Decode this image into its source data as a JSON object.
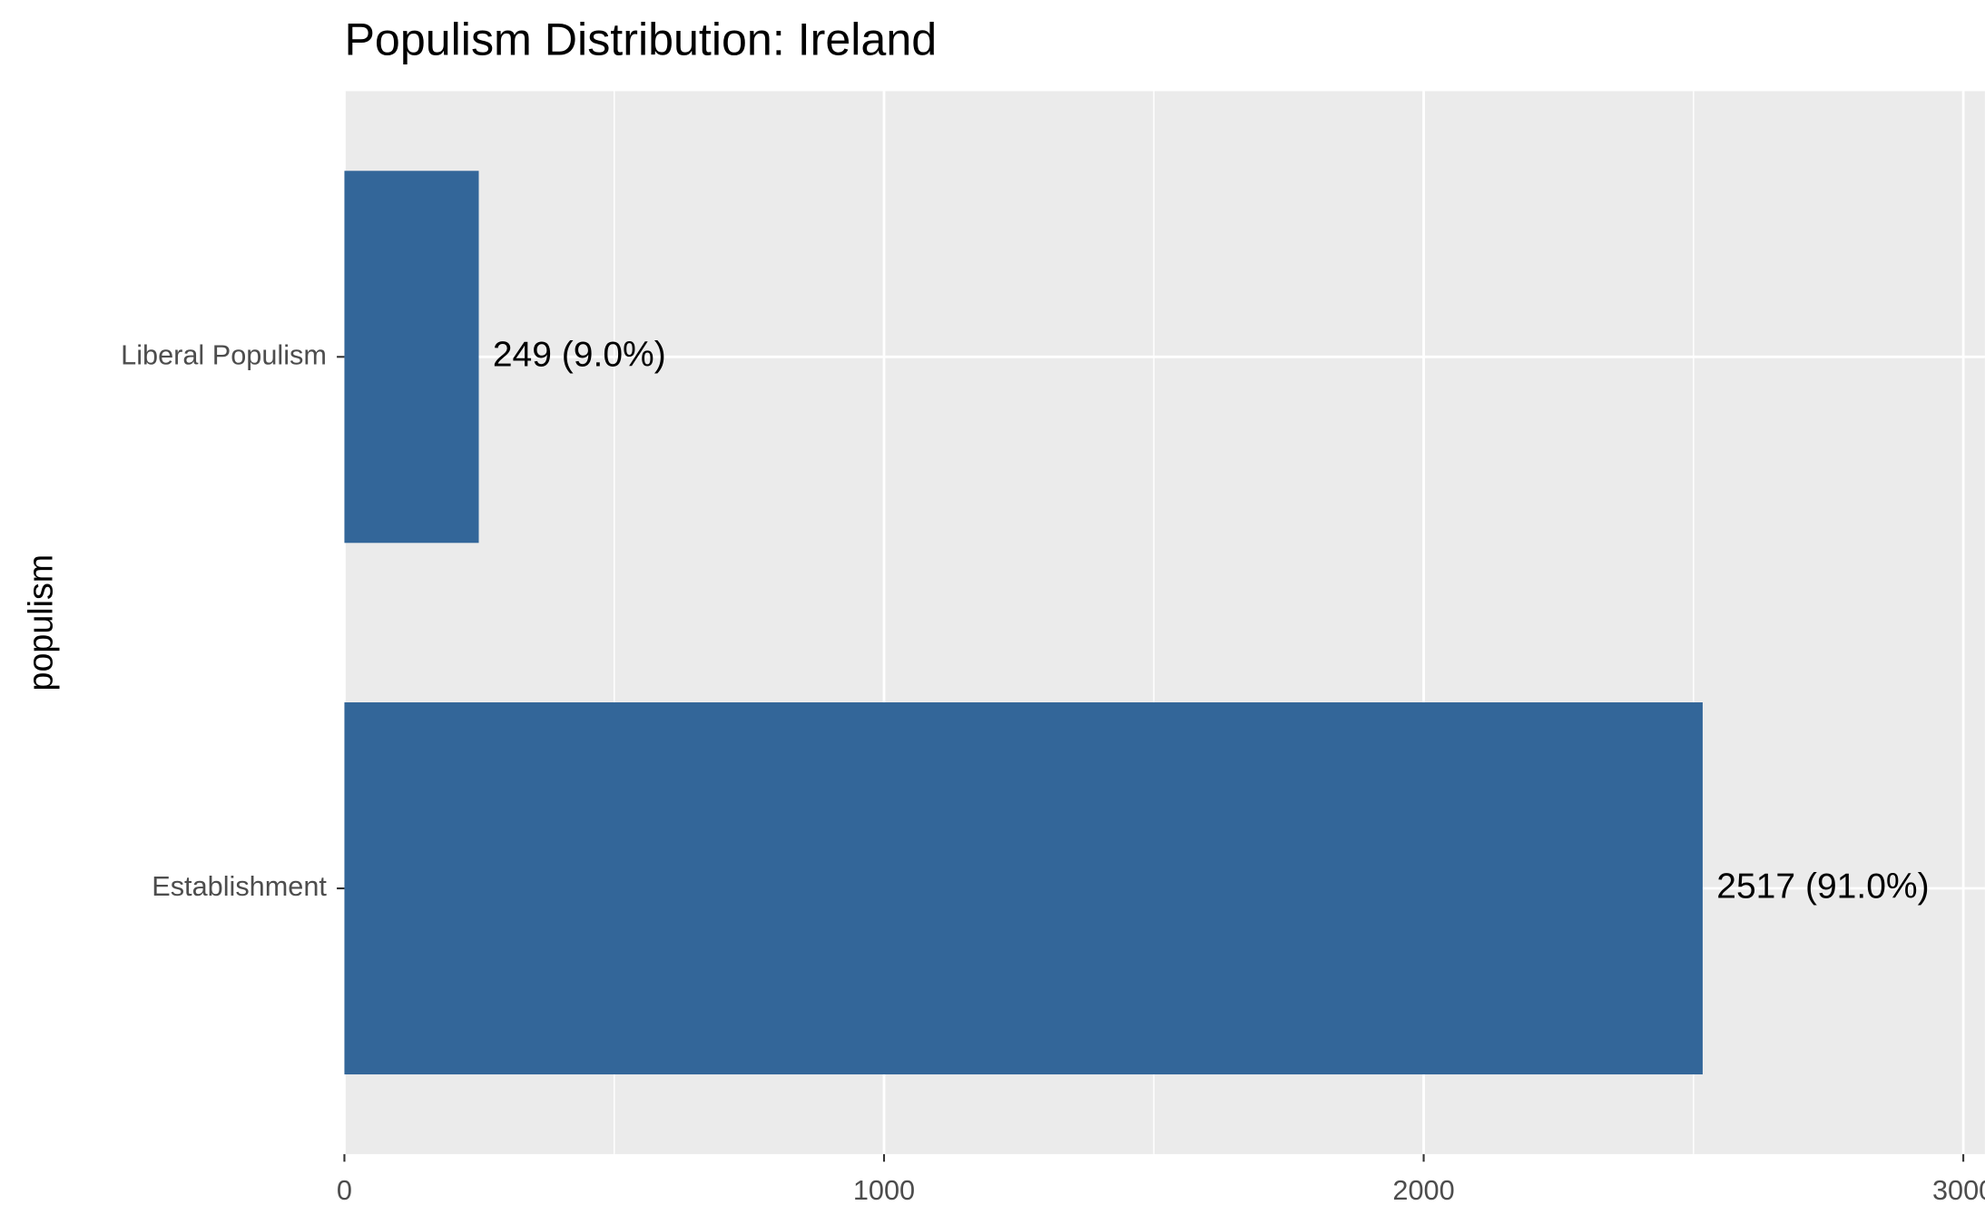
{
  "chart_data": {
    "type": "bar",
    "orientation": "horizontal",
    "title": "Populism Distribution: Ireland",
    "y_label": "populism",
    "categories": [
      "Liberal Populism",
      "Establishment"
    ],
    "values": [
      249,
      2517
    ],
    "value_labels": [
      "249 (9.0%)",
      "2517 (91.0%)"
    ],
    "color": "#336699",
    "xlim": [
      0,
      3040
    ],
    "xticks": [
      0,
      1000,
      2000,
      3000
    ],
    "minor_xticks": [
      500,
      1500,
      2500
    ],
    "grid": true
  }
}
